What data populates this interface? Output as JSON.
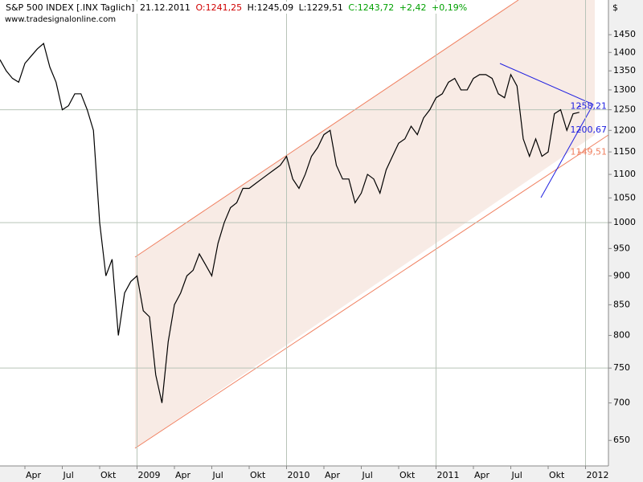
{
  "chart_data": {
    "type": "line",
    "title": "S&P 500 INDEX [.INX  Taglich]",
    "date": "21.12.2011",
    "open": "O:1241,25",
    "high": "H:1245,09",
    "low": "L:1229,51",
    "close": "C:1243,72",
    "change": "+2,42",
    "change_pct": "+0,19%",
    "source": "www.tradesignalonline.com",
    "y_axis_label": "$",
    "log_scale": true,
    "grid": true,
    "ylim": [
      618,
      1553
    ],
    "yticks": [
      650,
      700,
      750,
      800,
      850,
      900,
      950,
      1000,
      1050,
      1100,
      1150,
      1200,
      1250,
      1300,
      1350,
      1400,
      1450
    ],
    "categories": [
      null,
      null,
      null,
      null,
      "Apr",
      null,
      null,
      null,
      null,
      null,
      "Jul",
      null,
      null,
      null,
      null,
      null,
      "Okt",
      null,
      null,
      null,
      null,
      null,
      "2009",
      null,
      null,
      null,
      null,
      null,
      "Apr",
      null,
      null,
      null,
      null,
      null,
      "Jul",
      null,
      null,
      null,
      null,
      null,
      "Okt",
      null,
      null,
      null,
      null,
      null,
      "2010",
      null,
      null,
      null,
      null,
      null,
      "Apr",
      null,
      null,
      null,
      null,
      null,
      "Jul",
      null,
      null,
      null,
      null,
      null,
      "Okt",
      null,
      null,
      null,
      null,
      null,
      "2011",
      null,
      null,
      null,
      null,
      null,
      "Apr",
      null,
      null,
      null,
      null,
      null,
      "Jul",
      null,
      null,
      null,
      null,
      null,
      "Okt",
      null,
      null,
      null,
      null,
      null,
      "2012"
    ],
    "series": [
      {
        "color": "#000000",
        "values": [
          1380,
          1350,
          1330,
          1320,
          1370,
          1390,
          1410,
          1425,
          1360,
          1320,
          1250,
          1260,
          1290,
          1290,
          1250,
          1200,
          1000,
          900,
          930,
          800,
          870,
          890,
          900,
          840,
          830,
          740,
          700,
          790,
          850,
          870,
          900,
          910,
          940,
          920,
          900,
          960,
          1000,
          1030,
          1040,
          1070,
          1070,
          1080,
          1090,
          1100,
          1110,
          1120,
          1140,
          1090,
          1070,
          1100,
          1140,
          1160,
          1190,
          1200,
          1120,
          1090,
          1090,
          1040,
          1060,
          1100,
          1090,
          1060,
          1110,
          1140,
          1170,
          1180,
          1210,
          1190,
          1230,
          1250,
          1280,
          1290,
          1320,
          1330,
          1300,
          1300,
          1330,
          1340,
          1340,
          1330,
          1290,
          1280,
          1340,
          1310,
          1180,
          1140,
          1180,
          1140,
          1150,
          1240,
          1250,
          1200,
          1240,
          1243.72,
          null
        ]
      }
    ],
    "annotations": [
      {
        "value": 1258.21,
        "label": "1258,21",
        "color": "#2020e0"
      },
      {
        "value": 1200.67,
        "label": "1200,67",
        "color": "#2020e0"
      },
      {
        "value": 1149.51,
        "label": "1149,51",
        "color": "#f08060"
      }
    ]
  }
}
